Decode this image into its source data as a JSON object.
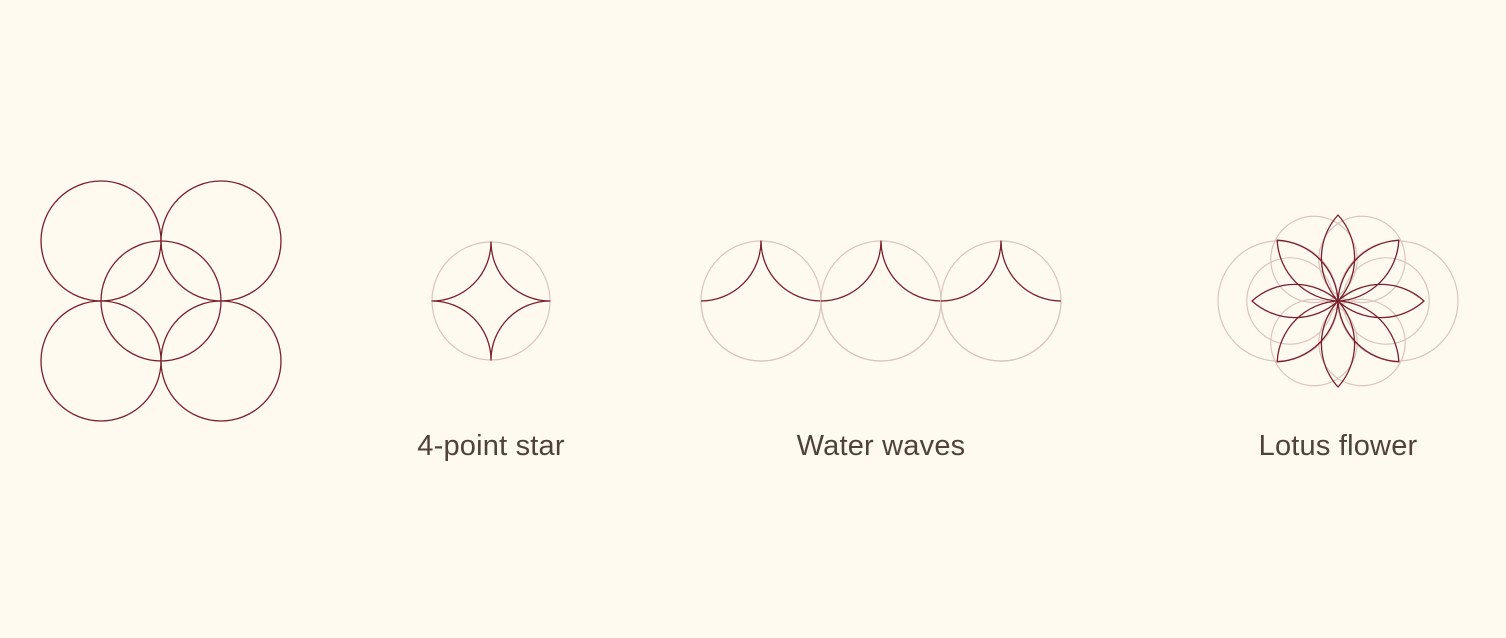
{
  "palette": {
    "background": "#fffaf0",
    "line": "#7a1f2b",
    "guide": "#d9c5bd",
    "caption": "#4f4239"
  },
  "motifs": [
    {
      "id": "overlapping-circles",
      "caption": ""
    },
    {
      "id": "four-point-star",
      "caption": "4-point star"
    },
    {
      "id": "water-waves",
      "caption": "Water waves"
    },
    {
      "id": "lotus-flower",
      "caption": "Lotus flower"
    }
  ]
}
